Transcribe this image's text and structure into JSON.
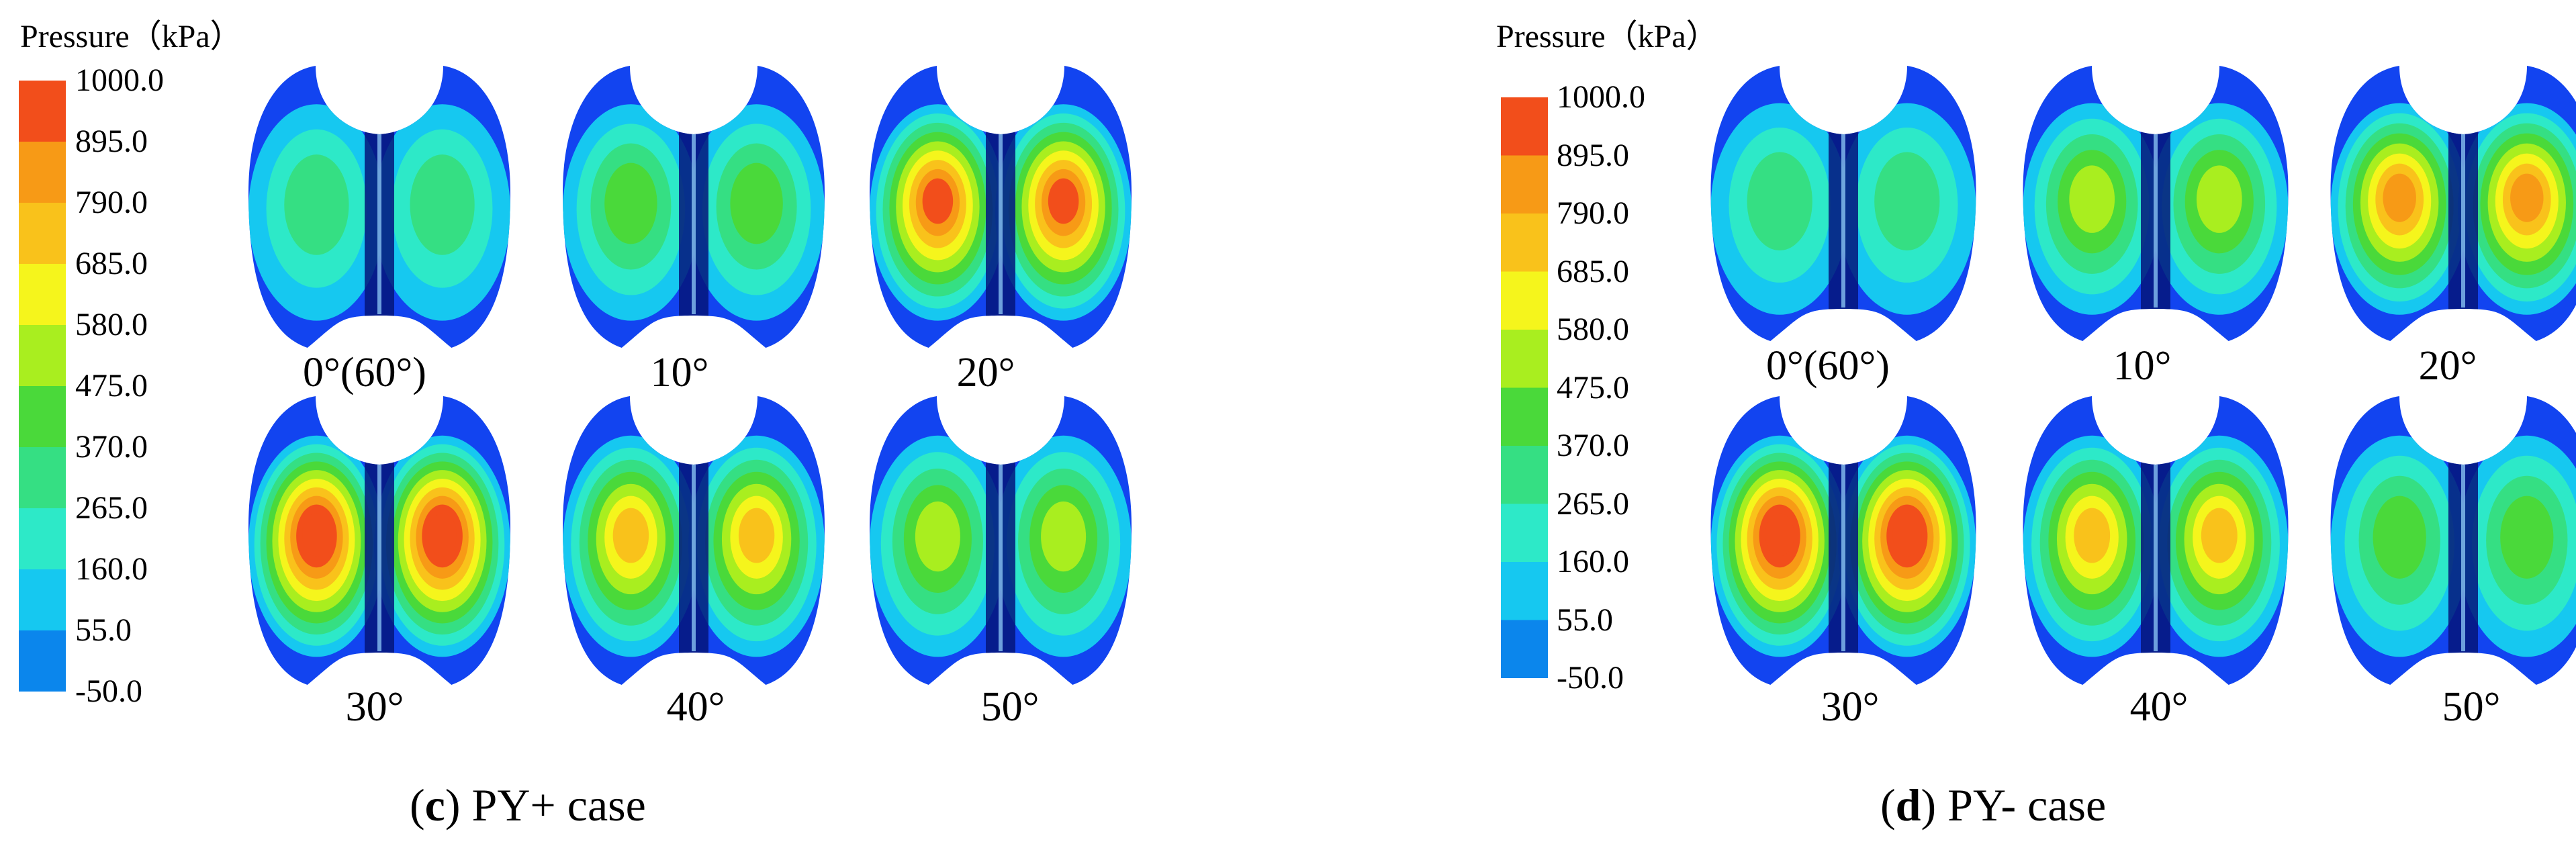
{
  "colors": {
    "bands": [
      "#0a33f5",
      "#0b86ec",
      "#16c8f0",
      "#2de9c8",
      "#35df83",
      "#4ad93a",
      "#a9ee1f",
      "#f5f51c",
      "#f9c21b",
      "#f79a16",
      "#f24e1b"
    ],
    "shape_base": "#1244f0",
    "shape_dark": "#05157a"
  },
  "legend": {
    "title": "Pressure（kPa）",
    "ticks": [
      "1000.0",
      "895.0",
      "790.0",
      "685.0",
      "580.0",
      "475.0",
      "370.0",
      "265.0",
      "160.0",
      "55.0",
      "-50.0"
    ]
  },
  "panels": [
    {
      "id": "c",
      "caption_letter": "c",
      "caption_text": " PY+ case",
      "angles": [
        "0°(60°)",
        "10°",
        "20°",
        "30°",
        "40°",
        "50°"
      ],
      "intensity": [
        0.3,
        0.35,
        0.85,
        1.0,
        0.65,
        0.45
      ]
    },
    {
      "id": "d",
      "caption_letter": "d",
      "caption_text": " PY- case",
      "angles": [
        "0°(60°)",
        "10°",
        "20°",
        "30°",
        "40°",
        "50°"
      ],
      "intensity": [
        0.3,
        0.45,
        0.8,
        0.95,
        0.7,
        0.4
      ]
    }
  ]
}
